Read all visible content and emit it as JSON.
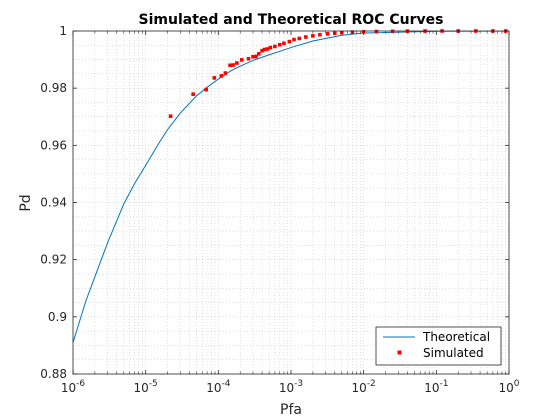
{
  "chart_data": {
    "type": "line",
    "title": "Simulated and Theoretical ROC Curves",
    "xlabel": "Pfa",
    "ylabel": "Pd",
    "xscale": "log",
    "xlim": [
      1e-06,
      1
    ],
    "ylim": [
      0.88,
      1
    ],
    "grid": true,
    "minor_grid": true,
    "legend_position": "bottom-right",
    "x_ticks": [
      {
        "value": 1e-06,
        "base": "10",
        "exp": "-6"
      },
      {
        "value": 1e-05,
        "base": "10",
        "exp": "-5"
      },
      {
        "value": 0.0001,
        "base": "10",
        "exp": "-4"
      },
      {
        "value": 0.001,
        "base": "10",
        "exp": "-3"
      },
      {
        "value": 0.01,
        "base": "10",
        "exp": "-2"
      },
      {
        "value": 0.1,
        "base": "10",
        "exp": "-1"
      },
      {
        "value": 1,
        "base": "10",
        "exp": "0"
      }
    ],
    "y_ticks": [
      {
        "value": 0.88,
        "label": "0.88"
      },
      {
        "value": 0.9,
        "label": "0.9"
      },
      {
        "value": 0.92,
        "label": "0.92"
      },
      {
        "value": 0.94,
        "label": "0.94"
      },
      {
        "value": 0.96,
        "label": "0.96"
      },
      {
        "value": 0.98,
        "label": "0.98"
      },
      {
        "value": 1.0,
        "label": "1"
      }
    ],
    "series": [
      {
        "name": "Theoretical",
        "style": "line",
        "color": "#0072bd",
        "x": [
          1e-06,
          1.5e-06,
          2e-06,
          3e-06,
          5e-06,
          7e-06,
          1e-05,
          1.5e-05,
          2e-05,
          3e-05,
          5e-05,
          7e-05,
          0.0001,
          0.00015,
          0.0002,
          0.0003,
          0.0005,
          0.0007,
          0.001,
          0.002,
          0.005,
          0.01,
          0.1,
          1
        ],
        "y": [
          0.891,
          0.9055,
          0.914,
          0.926,
          0.9395,
          0.9465,
          0.953,
          0.9605,
          0.9655,
          0.9713,
          0.9773,
          0.9803,
          0.9832,
          0.9861,
          0.9877,
          0.9897,
          0.9917,
          0.9929,
          0.9942,
          0.9965,
          0.9985,
          0.9993,
          0.9999,
          1.0
        ]
      },
      {
        "name": "Simulated",
        "style": "markers",
        "color": "#ff0000",
        "x": [
          2.2e-05,
          4.5e-05,
          6.8e-05,
          8.8e-05,
          0.00011,
          0.000125,
          0.000145,
          0.00016,
          0.00018,
          0.00021,
          0.00026,
          0.0003,
          0.00033,
          0.00036,
          0.0004,
          0.00043,
          0.00047,
          0.00052,
          0.0006,
          0.0007,
          0.0008,
          0.00095,
          0.0011,
          0.0013,
          0.0016,
          0.002,
          0.0025,
          0.0032,
          0.004,
          0.005,
          0.007,
          0.01,
          0.015,
          0.025,
          0.04,
          0.07,
          0.12,
          0.2,
          0.35,
          0.6,
          0.9
        ],
        "y": [
          0.9702,
          0.9779,
          0.9795,
          0.9836,
          0.9843,
          0.9853,
          0.988,
          0.9881,
          0.9888,
          0.9899,
          0.9903,
          0.991,
          0.9911,
          0.992,
          0.9931,
          0.9935,
          0.9937,
          0.9942,
          0.9946,
          0.9952,
          0.9957,
          0.9963,
          0.997,
          0.9974,
          0.9979,
          0.9983,
          0.9987,
          0.999,
          0.9992,
          0.9994,
          0.9996,
          0.9997,
          0.9998,
          0.9999,
          0.99995,
          1.0,
          1.0,
          1.0,
          1.0,
          1.0,
          1.0
        ]
      }
    ]
  }
}
